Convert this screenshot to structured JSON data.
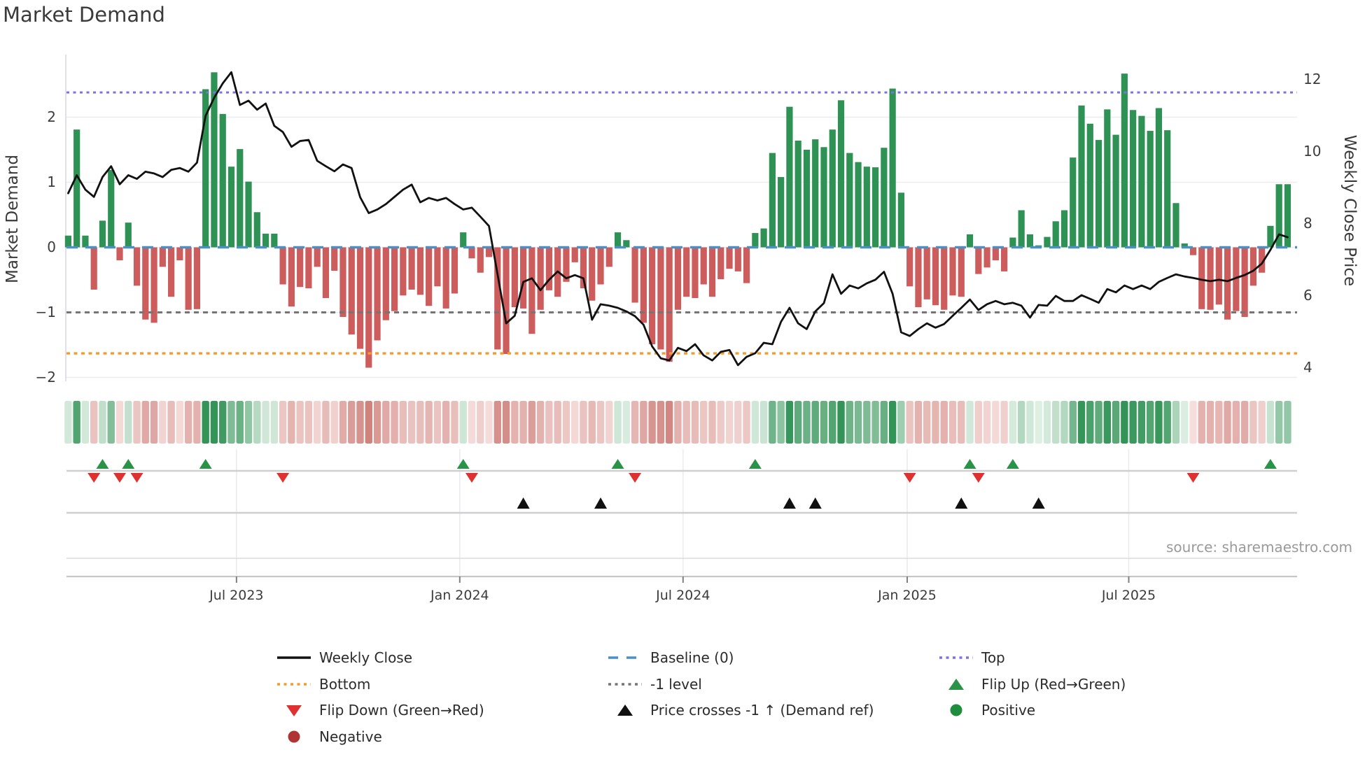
{
  "title": "Market Demand",
  "source": "source: sharemaestro.com",
  "axes": {
    "left_label": "Market Demand",
    "right_label": "Weekly Close Price",
    "left_ticks": [
      {
        "label": "2",
        "value": 2
      },
      {
        "label": "1",
        "value": 1
      },
      {
        "label": "0",
        "value": 0
      },
      {
        "label": "−1",
        "value": -1
      },
      {
        "label": "−2",
        "value": -2
      }
    ],
    "right_ticks": [
      {
        "label": "12",
        "value": 12
      },
      {
        "label": "10",
        "value": 10
      },
      {
        "label": "8",
        "value": 8
      },
      {
        "label": "6",
        "value": 6
      },
      {
        "label": "4",
        "value": 4
      }
    ],
    "x_ticks": [
      {
        "label": "Jul 2023",
        "week": 19.6
      },
      {
        "label": "Jan 2024",
        "week": 45.6
      },
      {
        "label": "Jul 2024",
        "week": 71.6
      },
      {
        "label": "Jan 2025",
        "week": 97.7
      },
      {
        "label": "Jul 2025",
        "week": 123.5
      }
    ]
  },
  "chart_data": {
    "type": "bar+line",
    "title": "Market Demand",
    "start_date": "2023-02-17",
    "frequency": "weekly",
    "num_weeks": 143,
    "ylim_left": [
      -2.2,
      3.0
    ],
    "ylim_right": [
      3.6,
      12.8
    ],
    "grid": "horizontal at left-axis integers",
    "series": [
      {
        "name": "Market Demand",
        "type": "bar",
        "axis": "left",
        "positive_color": "#2e9254",
        "negative_color": "#cd5c5c",
        "values": [
          0.18,
          1.81,
          0.18,
          -0.65,
          0.41,
          1.19,
          -0.2,
          0.38,
          -0.59,
          -1.11,
          -1.16,
          -0.3,
          -0.76,
          -0.2,
          -0.96,
          -0.95,
          2.43,
          2.69,
          2.05,
          1.24,
          1.51,
          1.01,
          0.54,
          0.21,
          0.21,
          -0.57,
          -0.91,
          -0.61,
          -0.63,
          -0.3,
          -0.78,
          -0.36,
          -1.07,
          -1.34,
          -1.56,
          -1.85,
          -1.43,
          -1.12,
          -0.98,
          -0.74,
          -0.65,
          -0.73,
          -0.9,
          -0.6,
          -0.94,
          -0.71,
          0.23,
          -0.17,
          -0.39,
          -0.15,
          -1.57,
          -1.64,
          -0.92,
          -0.94,
          -1.33,
          -0.96,
          -0.66,
          -0.76,
          -0.53,
          -0.23,
          -0.63,
          -0.82,
          -0.57,
          -0.3,
          0.23,
          0.11,
          -0.85,
          -1.16,
          -1.49,
          -1.57,
          -1.76,
          -0.96,
          -0.76,
          -0.78,
          -0.57,
          -0.76,
          -0.49,
          -0.33,
          -0.37,
          -0.55,
          0.22,
          0.29,
          1.45,
          1.08,
          2.16,
          1.64,
          1.5,
          1.66,
          1.54,
          1.81,
          2.26,
          1.45,
          1.31,
          1.24,
          1.23,
          1.53,
          2.44,
          0.84,
          -0.6,
          -0.92,
          -0.8,
          -0.89,
          -0.96,
          -0.74,
          -0.76,
          0.2,
          -0.41,
          -0.31,
          -0.2,
          -0.37,
          0.15,
          0.57,
          0.2,
          0.03,
          0.16,
          0.4,
          0.57,
          1.38,
          2.18,
          1.9,
          1.65,
          2.12,
          1.73,
          2.67,
          2.11,
          2.02,
          1.79,
          2.14,
          1.8,
          0.68,
          0.06,
          -0.12,
          -0.95,
          -0.96,
          -0.88,
          -1.11,
          -0.98,
          -1.07,
          -0.59,
          -0.39,
          0.33,
          0.97,
          0.97
        ]
      },
      {
        "name": "Weekly Close",
        "type": "line",
        "axis": "right",
        "color": "#111111",
        "values": [
          8.85,
          9.35,
          8.95,
          8.75,
          9.3,
          9.6,
          9.1,
          9.35,
          9.25,
          9.45,
          9.4,
          9.3,
          9.5,
          9.55,
          9.45,
          9.7,
          11.0,
          11.5,
          11.9,
          12.21,
          11.3,
          11.42,
          11.17,
          11.34,
          10.72,
          10.55,
          10.14,
          10.3,
          10.33,
          9.75,
          9.6,
          9.46,
          9.65,
          9.55,
          8.74,
          8.3,
          8.4,
          8.55,
          8.75,
          8.95,
          9.09,
          8.6,
          8.72,
          8.65,
          8.72,
          8.55,
          8.4,
          8.45,
          8.2,
          7.94,
          6.6,
          5.24,
          5.45,
          6.39,
          6.49,
          6.16,
          6.45,
          6.68,
          6.49,
          6.58,
          6.49,
          5.34,
          5.77,
          5.73,
          5.67,
          5.57,
          5.44,
          5.2,
          4.6,
          4.27,
          4.21,
          4.56,
          4.47,
          4.66,
          4.35,
          4.21,
          4.45,
          4.5,
          4.08,
          4.31,
          4.41,
          4.7,
          4.66,
          5.28,
          5.67,
          5.24,
          5.08,
          5.57,
          5.8,
          6.6,
          6.06,
          6.29,
          6.21,
          6.35,
          6.45,
          6.67,
          6.06,
          4.99,
          4.89,
          5.08,
          5.24,
          5.12,
          5.22,
          5.45,
          5.67,
          5.9,
          5.61,
          5.77,
          5.86,
          5.77,
          5.81,
          5.73,
          5.4,
          5.75,
          5.73,
          6.0,
          5.86,
          5.86,
          6.02,
          5.92,
          5.81,
          6.19,
          6.1,
          6.29,
          6.19,
          6.29,
          6.19,
          6.39,
          6.5,
          6.6,
          6.54,
          6.5,
          6.45,
          6.41,
          6.45,
          6.41,
          6.5,
          6.58,
          6.7,
          6.9,
          7.28,
          7.71,
          7.63
        ]
      }
    ],
    "reference_lines": [
      {
        "name": "Top",
        "value": 2.38,
        "axis": "left",
        "color": "#7b74e0",
        "style": "dotted"
      },
      {
        "name": "Baseline (0)",
        "value": 0,
        "axis": "left",
        "color": "#4a90c4",
        "style": "dashed"
      },
      {
        "name": "-1 level",
        "value": -1,
        "axis": "left",
        "color": "#757575",
        "style": "dashed"
      },
      {
        "name": "Bottom",
        "value": -1.63,
        "axis": "left",
        "color": "#f39c2c",
        "style": "dotted"
      }
    ],
    "heatmap_strip": {
      "description": "weekly demand sign/intensity strip below main plot",
      "pos_color": "#349458",
      "neg_color": "#c8706a"
    },
    "markers": {
      "flip_up": {
        "label": "Flip Up (Red→Green)",
        "color": "#2b9348",
        "weeks": [
          4,
          7,
          16,
          46,
          64,
          80,
          105,
          110,
          140
        ]
      },
      "flip_down": {
        "label": "Flip Down (Green→Red)",
        "color": "#e03131",
        "weeks": [
          3,
          6,
          8,
          25,
          47,
          66,
          98,
          106,
          131
        ]
      },
      "price_cross": {
        "label": "Price crosses -1 ↑ (Demand ref)",
        "color": "#111111",
        "weeks": [
          53,
          62,
          84,
          87,
          104,
          113
        ]
      }
    },
    "legend_position": "bottom"
  },
  "legend": {
    "entries": [
      {
        "row": 0,
        "col": 0,
        "swatch": "line-solid",
        "color": "#111111",
        "label": "Weekly Close"
      },
      {
        "row": 0,
        "col": 1,
        "swatch": "line-dashed",
        "color": "#4a90c4",
        "label": "Baseline (0)"
      },
      {
        "row": 0,
        "col": 2,
        "swatch": "line-dotted",
        "color": "#7b74e0",
        "label": "Top"
      },
      {
        "row": 1,
        "col": 0,
        "swatch": "line-dotted",
        "color": "#f39c2c",
        "label": "Bottom"
      },
      {
        "row": 1,
        "col": 1,
        "swatch": "line-dotted",
        "color": "#757575",
        "label": "-1 level"
      },
      {
        "row": 1,
        "col": 2,
        "swatch": "triangle-up",
        "color": "#2b9348",
        "label": "Flip Up (Red→Green)"
      },
      {
        "row": 2,
        "col": 0,
        "swatch": "triangle-down",
        "color": "#e03131",
        "label": "Flip Down (Green→Red)"
      },
      {
        "row": 2,
        "col": 1,
        "swatch": "triangle-up",
        "color": "#111111",
        "label": "Price crosses -1 ↑ (Demand ref)"
      },
      {
        "row": 2,
        "col": 2,
        "swatch": "circle",
        "color": "#1e8e3e",
        "label": "Positive"
      },
      {
        "row": 3,
        "col": 0,
        "swatch": "circle",
        "color": "#b03434",
        "label": "Negative"
      }
    ]
  }
}
